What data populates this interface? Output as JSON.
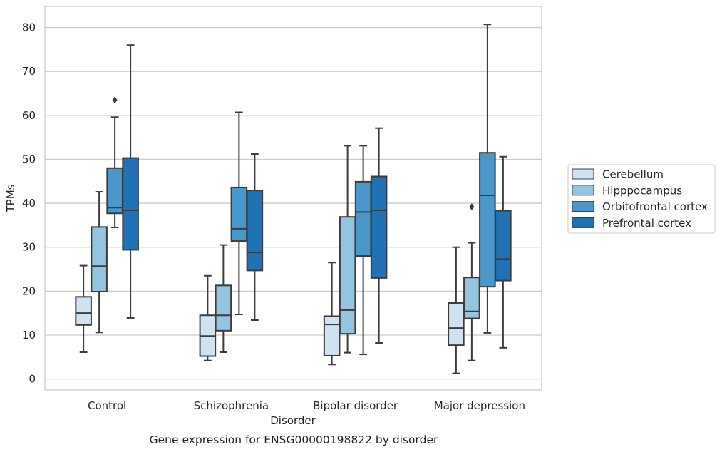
{
  "chart_data": {
    "type": "box",
    "caption": "Gene expression for ENSG00000198822 by disorder",
    "xlabel": "Disorder",
    "ylabel": "TPMs",
    "ylim": [
      -2.5,
      84.8
    ],
    "yticks": [
      0,
      10,
      20,
      30,
      40,
      50,
      60,
      70,
      80
    ],
    "grid": "horizontal",
    "legend_position": "right",
    "categories": [
      "Control",
      "Schizophrenia",
      "Bipolar disorder",
      "Major depression"
    ],
    "series": [
      {
        "name": "Cerebellum",
        "color": "#d0e1f2",
        "boxes": [
          {
            "whislo": 6.1,
            "q1": 12.3,
            "med": 15.0,
            "q3": 18.7,
            "whishi": 25.8,
            "fliers": []
          },
          {
            "whislo": 4.2,
            "q1": 5.2,
            "med": 9.8,
            "q3": 14.5,
            "whishi": 23.5,
            "fliers": []
          },
          {
            "whislo": 3.3,
            "q1": 5.3,
            "med": 12.4,
            "q3": 14.3,
            "whishi": 26.5,
            "fliers": []
          },
          {
            "whislo": 1.3,
            "q1": 7.7,
            "med": 11.6,
            "q3": 17.3,
            "whishi": 30.0,
            "fliers": []
          }
        ]
      },
      {
        "name": "Hipppocampus",
        "color": "#94c4df",
        "boxes": [
          {
            "whislo": 10.6,
            "q1": 19.9,
            "med": 25.7,
            "q3": 34.6,
            "whishi": 42.6,
            "fliers": []
          },
          {
            "whislo": 6.1,
            "q1": 11.0,
            "med": 14.5,
            "q3": 21.3,
            "whishi": 30.5,
            "fliers": []
          },
          {
            "whislo": 6.0,
            "q1": 10.3,
            "med": 15.7,
            "q3": 36.9,
            "whishi": 53.1,
            "fliers": []
          },
          {
            "whislo": 4.2,
            "q1": 13.8,
            "med": 15.4,
            "q3": 23.1,
            "whishi": 31.0,
            "fliers": [
              39.2
            ]
          }
        ]
      },
      {
        "name": "Orbitofrontal cortex",
        "color": "#4a98c9",
        "boxes": [
          {
            "whislo": 34.5,
            "q1": 37.7,
            "med": 39.0,
            "q3": 48.0,
            "whishi": 59.6,
            "fliers": [
              63.5
            ]
          },
          {
            "whislo": 14.7,
            "q1": 31.4,
            "med": 34.2,
            "q3": 43.6,
            "whishi": 60.7,
            "fliers": []
          },
          {
            "whislo": 5.6,
            "q1": 28.0,
            "med": 38.0,
            "q3": 44.9,
            "whishi": 53.1,
            "fliers": []
          },
          {
            "whislo": 10.5,
            "q1": 21.0,
            "med": 41.8,
            "q3": 51.5,
            "whishi": 80.7,
            "fliers": []
          }
        ]
      },
      {
        "name": "Prefrontal cortex",
        "color": "#2171b5",
        "boxes": [
          {
            "whislo": 13.9,
            "q1": 29.4,
            "med": 38.4,
            "q3": 50.3,
            "whishi": 76.0,
            "fliers": []
          },
          {
            "whislo": 13.4,
            "q1": 24.7,
            "med": 28.8,
            "q3": 42.9,
            "whishi": 51.2,
            "fliers": []
          },
          {
            "whislo": 8.2,
            "q1": 23.0,
            "med": 38.4,
            "q3": 46.1,
            "whishi": 57.1,
            "fliers": []
          },
          {
            "whislo": 7.1,
            "q1": 22.4,
            "med": 27.3,
            "q3": 38.3,
            "whishi": 50.6,
            "fliers": []
          }
        ]
      }
    ]
  }
}
